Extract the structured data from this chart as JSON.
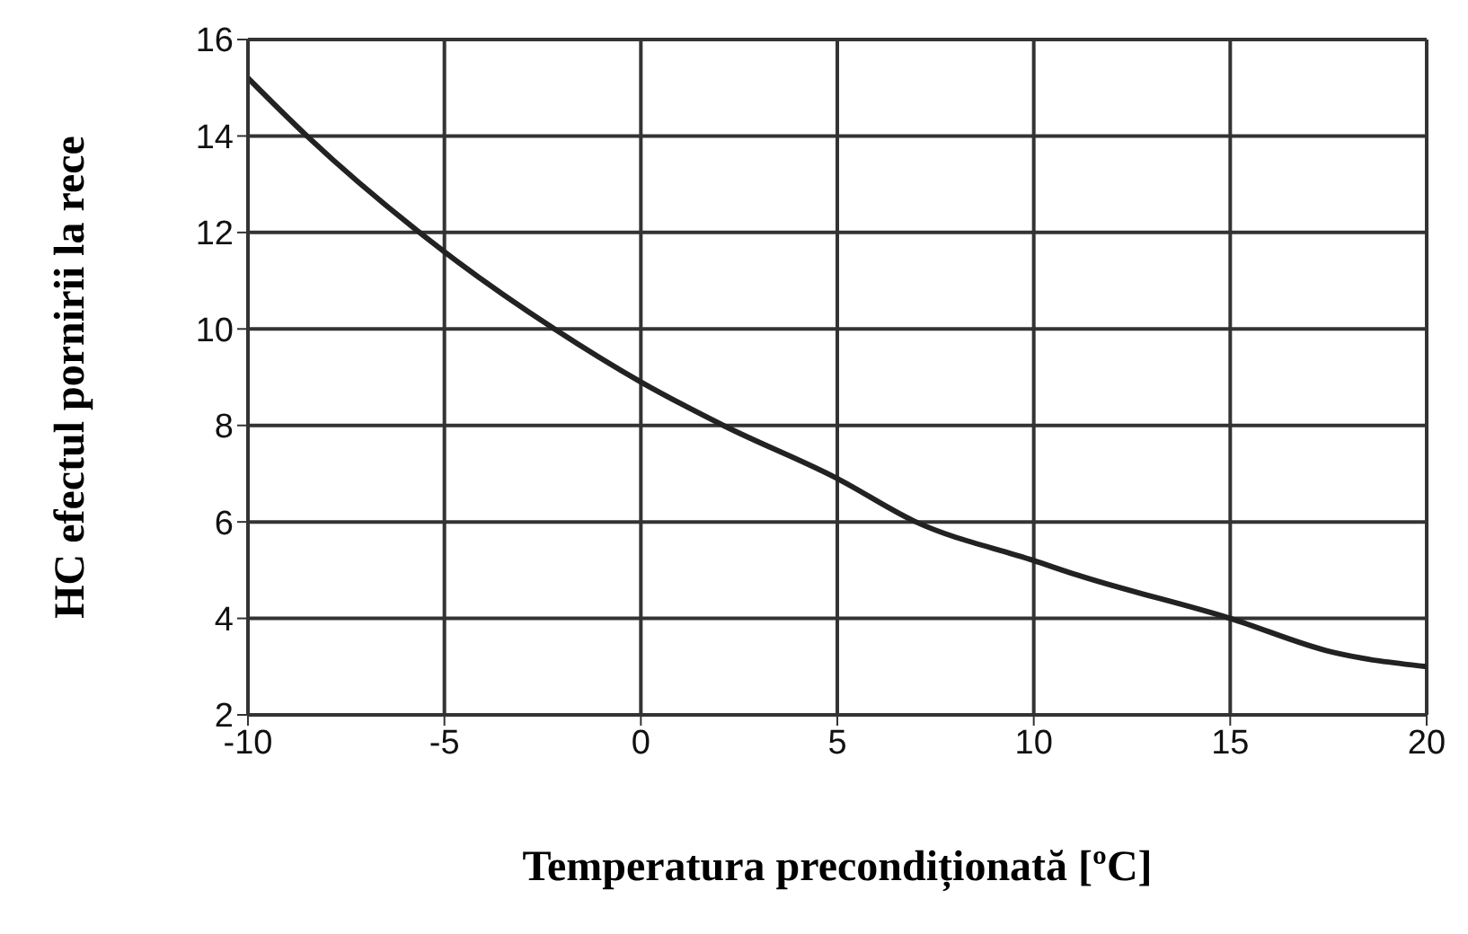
{
  "chart_data": {
    "type": "line",
    "xlabel": "Temperatura precondiționată [ºC]",
    "ylabel": "HC efectul pornirii la rece",
    "x": [
      -10,
      -8.5,
      -5,
      -2.2,
      0,
      2.1,
      5,
      7,
      10,
      11.1,
      15,
      17.6,
      20
    ],
    "series": [
      {
        "color": "#222222",
        "values": [
          15.2,
          14,
          11.6,
          10,
          8.9,
          8,
          6.9,
          6,
          5.2,
          4.9,
          4,
          3.3,
          3
        ]
      }
    ],
    "xlim": [
      -10,
      20
    ],
    "xticks": [
      -10,
      -5,
      0,
      5,
      10,
      15,
      20
    ],
    "ylim": [
      2,
      16
    ],
    "yticks": [
      2,
      4,
      6,
      8,
      10,
      12,
      14,
      16
    ],
    "grid": true,
    "marker": "none",
    "line_style": "solid"
  }
}
